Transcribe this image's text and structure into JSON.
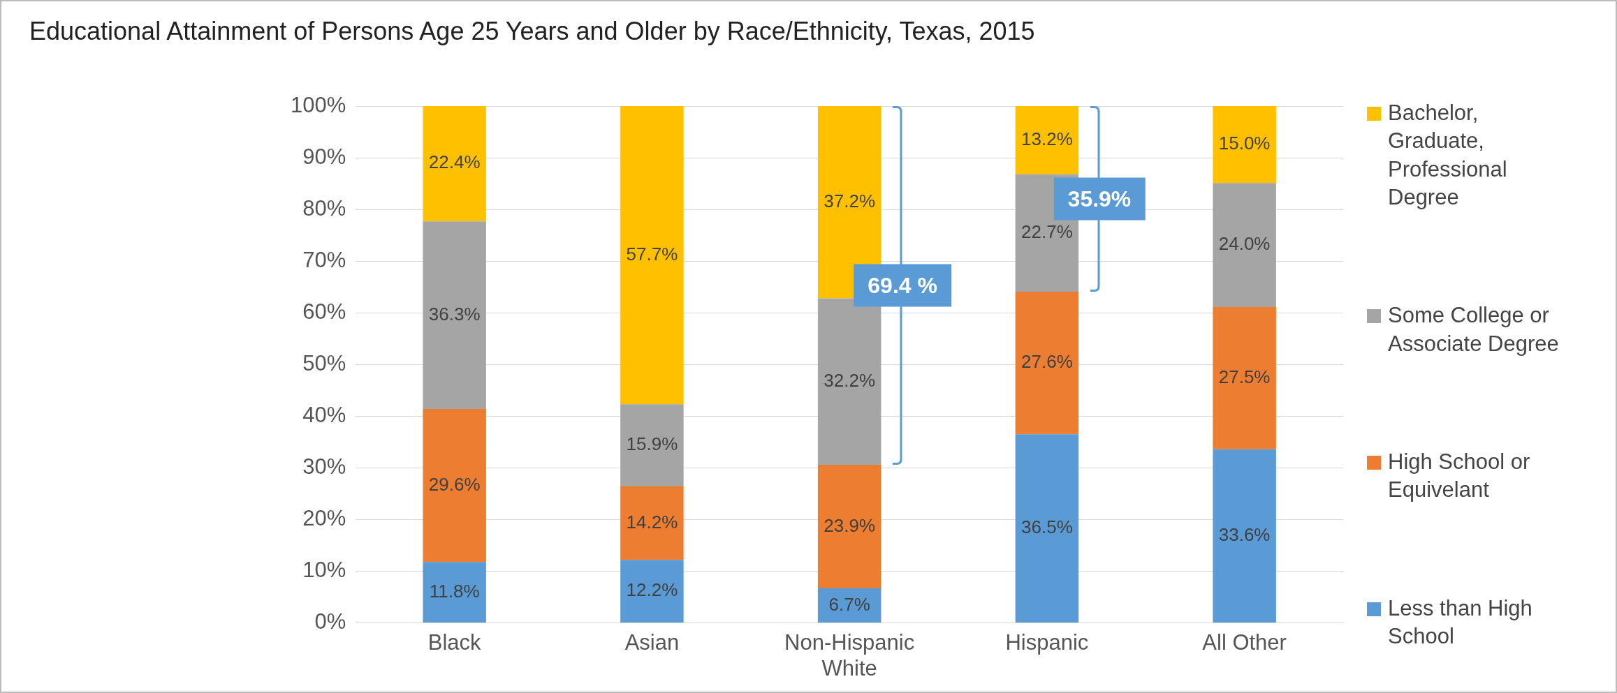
{
  "chart_data": {
    "type": "bar",
    "stacked": true,
    "title": "Educational Attainment of Persons Age 25 Years and Older by Race/Ethnicity, Texas, 2015",
    "categories": [
      "Black",
      "Asian",
      "Non-Hispanic White",
      "Hispanic",
      "All Other"
    ],
    "series": [
      {
        "name": "Less than High School",
        "color": "#5b9bd5",
        "values": [
          11.8,
          12.2,
          6.7,
          36.5,
          33.6
        ],
        "value_labels": [
          "11.8%",
          "12.2%",
          "6.7%",
          "36.5%",
          "33.6%"
        ]
      },
      {
        "name": "High School or Equivelant",
        "color": "#ed7d31",
        "values": [
          29.6,
          14.2,
          23.9,
          27.6,
          27.5
        ],
        "value_labels": [
          "29.6%",
          "14.2%",
          "23.9%",
          "27.6%",
          "27.5%"
        ]
      },
      {
        "name": "Some College or Associate Degree",
        "color": "#a5a5a5",
        "values": [
          36.3,
          15.9,
          32.2,
          22.7,
          24.0
        ],
        "value_labels": [
          "36.3%",
          "15.9%",
          "32.2%",
          "22.7%",
          "24.0%"
        ]
      },
      {
        "name": "Bachelor, Graduate, Professional Degree",
        "color": "#ffc000",
        "values": [
          22.4,
          57.7,
          37.2,
          13.2,
          15.0
        ],
        "value_labels": [
          "22.4%",
          "57.7%",
          "37.2%",
          "13.2%",
          "15.0%"
        ]
      }
    ],
    "ylim": [
      0,
      100
    ],
    "yticks": [
      {
        "value": 0,
        "label": "0%"
      },
      {
        "value": 10,
        "label": "10%"
      },
      {
        "value": 20,
        "label": "20%"
      },
      {
        "value": 30,
        "label": "30%"
      },
      {
        "value": 40,
        "label": "40%"
      },
      {
        "value": 50,
        "label": "50%"
      },
      {
        "value": 60,
        "label": "60%"
      },
      {
        "value": 70,
        "label": "70%"
      },
      {
        "value": 80,
        "label": "80%"
      },
      {
        "value": 90,
        "label": "90%"
      },
      {
        "value": 100,
        "label": "100%"
      }
    ],
    "grid": "y",
    "legend": "right",
    "annotations": [
      "69.4 %",
      "35.9%"
    ]
  }
}
